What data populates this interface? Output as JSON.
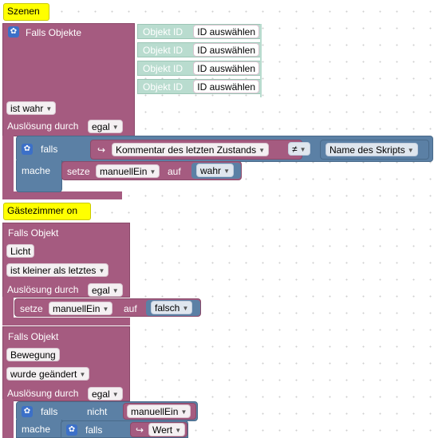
{
  "block1": {
    "comment": "Szenen",
    "header": "Falls Objekte",
    "object_rows": [
      {
        "label": "Objekt ID",
        "value": "ID auswählen"
      },
      {
        "label": "Objekt ID",
        "value": "ID auswählen"
      },
      {
        "label": "Objekt ID",
        "value": "ID auswählen"
      },
      {
        "label": "Objekt ID",
        "value": "ID auswählen"
      }
    ],
    "condition": "ist wahr",
    "trigger_label": "Auslösung durch",
    "trigger_value": "egal",
    "if_label": "falls",
    "comment_field": "Kommentar des letzten Zustands",
    "operator": "≠",
    "compare_value": "Name des Skripts",
    "do_label": "mache",
    "set_label": "setze",
    "var": "manuellEin",
    "to_label": "auf",
    "bool": "wahr"
  },
  "block2": {
    "comment": "Gästezimmer on",
    "header": "Falls Objekt",
    "object": "Licht",
    "condition": "ist kleiner als letztes",
    "trigger_label": "Auslösung durch",
    "trigger_value": "egal",
    "set_label": "setze",
    "var": "manuellEin",
    "to_label": "auf",
    "bool": "falsch"
  },
  "block3": {
    "header": "Falls Objekt",
    "object": "Bewegung",
    "condition": "wurde geändert",
    "trigger_label": "Auslösung durch",
    "trigger_value": "egal",
    "if_label": "falls",
    "not_label": "nicht",
    "var": "manuellEin",
    "do_label": "mache",
    "inner_if_label": "falls",
    "value_field": "Wert"
  },
  "colors": {
    "trigger": "#a55b80",
    "logic": "#5b80a5",
    "comment": "#ffff00",
    "object": "#b9dccf"
  }
}
